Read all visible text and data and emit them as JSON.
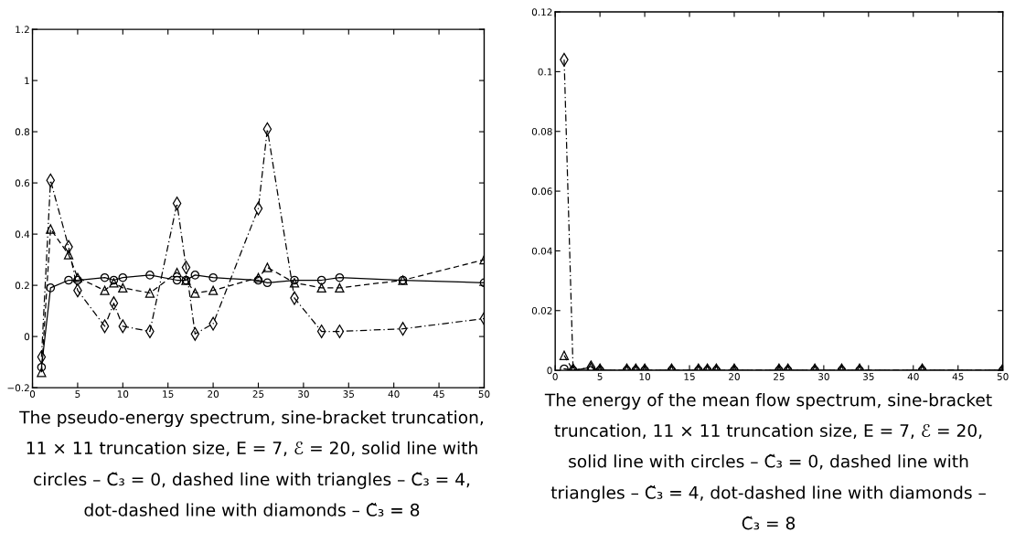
{
  "chart_data": [
    {
      "type": "line",
      "x": [
        1,
        2,
        4,
        5,
        8,
        9,
        10,
        13,
        16,
        17,
        18,
        20,
        25,
        26,
        29,
        32,
        34,
        41,
        50
      ],
      "series": [
        {
          "color": "#000000",
          "marker": "circle",
          "line_style": "solid",
          "values": [
            -0.12,
            0.19,
            0.22,
            0.22,
            0.23,
            0.22,
            0.23,
            0.24,
            0.22,
            0.22,
            0.24,
            0.23,
            0.22,
            0.21,
            0.22,
            0.22,
            0.23,
            0.22,
            0.21
          ]
        },
        {
          "color": "#000000",
          "marker": "triangle",
          "line_style": "dashed",
          "values": [
            -0.14,
            0.42,
            0.32,
            0.23,
            0.18,
            0.21,
            0.19,
            0.17,
            0.25,
            0.22,
            0.17,
            0.18,
            0.23,
            0.27,
            0.21,
            0.19,
            0.19,
            0.22,
            0.3
          ]
        },
        {
          "color": "#000000",
          "marker": "diamond",
          "line_style": "dashdot",
          "values": [
            -0.08,
            0.61,
            0.35,
            0.18,
            0.04,
            0.13,
            0.04,
            0.02,
            0.52,
            0.27,
            0.01,
            0.05,
            0.5,
            0.81,
            0.15,
            0.02,
            0.02,
            0.03,
            0.07
          ]
        }
      ],
      "xlim": [
        0,
        50
      ],
      "xticks": [
        0,
        5,
        10,
        15,
        20,
        25,
        30,
        35,
        40,
        45,
        50
      ],
      "ylim": [
        -0.2,
        1.2
      ],
      "yticks": [
        {
          "value": -0.2,
          "label": "−0.2"
        },
        0,
        0.2,
        0.4,
        0.6,
        0.8,
        1,
        1.2
      ],
      "annotations": [
        "The pseudo-energy spectrum, sine-bracket truncation, 11 × 11 truncation size, E = 7, ℰ = 20, solid line with circles – C̃₃ = 0, dashed line with triangles – C̃₃ = 4, dot-dashed line with diamonds – C̃₃ = 8"
      ]
    },
    {
      "type": "line",
      "x": [
        1,
        2,
        4,
        5,
        8,
        9,
        10,
        13,
        16,
        17,
        18,
        20,
        25,
        26,
        29,
        32,
        34,
        41,
        50
      ],
      "series": [
        {
          "color": "#000000",
          "marker": "circle",
          "line_style": "solid",
          "values": [
            0.0005,
            0,
            0,
            0,
            0,
            0,
            0,
            0,
            0,
            0,
            0,
            0,
            0,
            0,
            0,
            0,
            0,
            0,
            0
          ]
        },
        {
          "color": "#000000",
          "marker": "triangle",
          "line_style": "dashed",
          "values": [
            0.005,
            0,
            0.001,
            0,
            0,
            0,
            0,
            0,
            0,
            0,
            0,
            0,
            0,
            0,
            0,
            0,
            0,
            0,
            0
          ]
        },
        {
          "color": "#000000",
          "marker": "diamond",
          "line_style": "dashdot",
          "values": [
            0.104,
            0,
            0.001,
            0,
            0,
            0,
            0,
            0,
            0,
            0,
            0,
            0,
            0,
            0,
            0,
            0,
            0,
            0,
            0
          ]
        }
      ],
      "xlim": [
        0,
        50
      ],
      "xticks": [
        0,
        5,
        10,
        15,
        20,
        25,
        30,
        35,
        40,
        45,
        50
      ],
      "ylim": [
        0,
        0.12
      ],
      "yticks": [
        0,
        0.02,
        0.04,
        0.06,
        0.08,
        0.1,
        0.12
      ],
      "annotations": [
        "The energy of the mean flow spectrum, sine-bracket truncation, 11 × 11 truncation size, E = 7, ℰ = 20, solid line with circles – C̃₃ = 0, dashed line with triangles – C̃₃ = 4, dot-dashed line with diamonds – C̃₃ = 8"
      ]
    }
  ]
}
